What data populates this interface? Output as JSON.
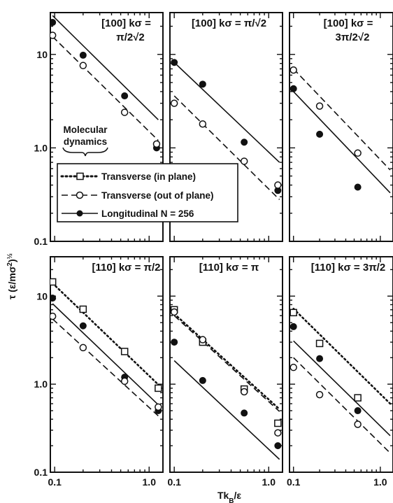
{
  "chart_data": {
    "type": "scatter",
    "x_scale": "log",
    "y_scale": "log",
    "xlim": [
      0.09,
      1.4
    ],
    "ylim": [
      0.1,
      28
    ],
    "x_ticks": [
      "0.1",
      "1.0"
    ],
    "y_ticks": [
      "0.1",
      "1.0",
      "10"
    ],
    "xlabel_parts": [
      "Tk",
      "B",
      "/ε"
    ],
    "ylabel_parts": [
      "τ (ε/mσ",
      "2",
      ")",
      "½"
    ],
    "annotation": [
      "Molecular",
      "dynamics"
    ],
    "legend": {
      "placement": "center-left",
      "entries": [
        {
          "label": "Transverse (in plane)",
          "line": "dotted",
          "marker": "open-square"
        },
        {
          "label": "Transverse (out of plane)",
          "line": "dashed",
          "marker": "open-circle"
        },
        {
          "label": "Longitudinal N = 256",
          "line": "solid",
          "marker": "filled-circle"
        }
      ]
    },
    "panels": [
      {
        "title_lines": [
          "[100]  kσ =",
          "π/2√2"
        ],
        "lines": [
          {
            "style": "solid",
            "points": [
              [
                0.095,
                26
              ],
              [
                1.25,
                2.0
              ]
            ]
          },
          {
            "style": "dashed",
            "points": [
              [
                0.095,
                15.5
              ],
              [
                1.25,
                1.2
              ]
            ]
          }
        ],
        "points": [
          {
            "marker": "filled-circle",
            "x": 0.095,
            "y": 22
          },
          {
            "marker": "filled-circle",
            "x": 0.2,
            "y": 9.8
          },
          {
            "marker": "filled-circle",
            "x": 0.55,
            "y": 3.6
          },
          {
            "marker": "filled-circle",
            "x": 1.2,
            "y": 1.0
          },
          {
            "marker": "open-circle",
            "x": 0.095,
            "y": 16
          },
          {
            "marker": "open-circle",
            "x": 0.2,
            "y": 7.6
          },
          {
            "marker": "open-circle",
            "x": 0.55,
            "y": 2.4
          },
          {
            "marker": "open-circle",
            "x": 1.2,
            "y": 1.1
          }
        ]
      },
      {
        "title_lines": [
          "[100]  kσ = π/√2",
          ""
        ],
        "lines": [
          {
            "style": "solid",
            "points": [
              [
                0.1,
                8.2
              ],
              [
                1.3,
                0.7
              ]
            ]
          },
          {
            "style": "dashed",
            "points": [
              [
                0.1,
                3.6
              ],
              [
                1.3,
                0.28
              ]
            ]
          }
        ],
        "points": [
          {
            "marker": "filled-circle",
            "x": 0.1,
            "y": 8.2
          },
          {
            "marker": "filled-circle",
            "x": 0.2,
            "y": 4.8
          },
          {
            "marker": "filled-circle",
            "x": 0.55,
            "y": 1.15
          },
          {
            "marker": "filled-circle",
            "x": 1.25,
            "y": 0.35
          },
          {
            "marker": "open-circle",
            "x": 0.1,
            "y": 3.0
          },
          {
            "marker": "open-circle",
            "x": 0.2,
            "y": 1.8
          },
          {
            "marker": "open-circle",
            "x": 0.55,
            "y": 0.72
          },
          {
            "marker": "open-circle",
            "x": 1.25,
            "y": 0.4
          }
        ]
      },
      {
        "title_lines": [
          "[100]  kσ =",
          "3π/2√2"
        ],
        "lines": [
          {
            "style": "solid",
            "points": [
              [
                0.1,
                4.0
              ],
              [
                1.3,
                0.33
              ]
            ]
          },
          {
            "style": "dashed",
            "points": [
              [
                0.1,
                7.0
              ],
              [
                1.3,
                0.58
              ]
            ]
          }
        ],
        "points": [
          {
            "marker": "filled-circle",
            "x": 0.1,
            "y": 4.3
          },
          {
            "marker": "filled-circle",
            "x": 0.2,
            "y": 1.4
          },
          {
            "marker": "filled-circle",
            "x": 0.55,
            "y": 0.38
          },
          {
            "marker": "open-circle",
            "x": 0.1,
            "y": 6.8
          },
          {
            "marker": "open-circle",
            "x": 0.2,
            "y": 2.8
          },
          {
            "marker": "open-circle",
            "x": 0.55,
            "y": 0.88
          }
        ]
      },
      {
        "title_lines": [
          "[110]  kσ = π/2",
          ""
        ],
        "lines": [
          {
            "style": "dotted",
            "points": [
              [
                0.095,
                14
              ],
              [
                1.3,
                0.95
              ]
            ]
          },
          {
            "style": "solid",
            "points": [
              [
                0.095,
                8.2
              ],
              [
                1.3,
                0.56
              ]
            ]
          },
          {
            "style": "dashed",
            "points": [
              [
                0.095,
                5.5
              ],
              [
                1.3,
                0.42
              ]
            ]
          }
        ],
        "points": [
          {
            "marker": "open-square",
            "x": 0.095,
            "y": 14.5
          },
          {
            "marker": "open-square",
            "x": 0.2,
            "y": 7.1
          },
          {
            "marker": "open-square",
            "x": 0.55,
            "y": 2.35
          },
          {
            "marker": "open-square",
            "x": 1.25,
            "y": 0.9
          },
          {
            "marker": "filled-circle",
            "x": 0.095,
            "y": 9.5
          },
          {
            "marker": "filled-circle",
            "x": 0.2,
            "y": 4.6
          },
          {
            "marker": "filled-circle",
            "x": 0.55,
            "y": 1.2
          },
          {
            "marker": "filled-circle",
            "x": 1.25,
            "y": 0.5
          },
          {
            "marker": "open-circle",
            "x": 0.095,
            "y": 5.9
          },
          {
            "marker": "open-circle",
            "x": 0.2,
            "y": 2.6
          },
          {
            "marker": "open-circle",
            "x": 0.55,
            "y": 1.08
          },
          {
            "marker": "open-circle",
            "x": 1.25,
            "y": 0.55
          }
        ]
      },
      {
        "title_lines": [
          "[110]  kσ = π",
          ""
        ],
        "lines": [
          {
            "style": "dotted",
            "points": [
              [
                0.1,
                6.3
              ],
              [
                1.3,
                0.52
              ]
            ]
          },
          {
            "style": "dashed",
            "points": [
              [
                0.1,
                6.0
              ],
              [
                1.3,
                0.49
              ]
            ]
          },
          {
            "style": "solid",
            "points": [
              [
                0.1,
                1.85
              ],
              [
                1.3,
                0.14
              ]
            ]
          }
        ],
        "points": [
          {
            "marker": "open-square",
            "x": 0.1,
            "y": 7.0
          },
          {
            "marker": "open-square",
            "x": 0.2,
            "y": 3.0
          },
          {
            "marker": "open-square",
            "x": 0.55,
            "y": 0.88
          },
          {
            "marker": "open-square",
            "x": 1.25,
            "y": 0.36
          },
          {
            "marker": "open-circle",
            "x": 0.1,
            "y": 6.6
          },
          {
            "marker": "open-circle",
            "x": 0.2,
            "y": 3.2
          },
          {
            "marker": "open-circle",
            "x": 0.55,
            "y": 0.82
          },
          {
            "marker": "open-circle",
            "x": 1.25,
            "y": 0.28
          },
          {
            "marker": "filled-circle",
            "x": 0.1,
            "y": 3.0
          },
          {
            "marker": "filled-circle",
            "x": 0.2,
            "y": 1.1
          },
          {
            "marker": "filled-circle",
            "x": 0.55,
            "y": 0.47
          },
          {
            "marker": "filled-circle",
            "x": 1.25,
            "y": 0.2
          }
        ]
      },
      {
        "title_lines": [
          "[110]  kσ = 3π/2",
          ""
        ],
        "lines": [
          {
            "style": "dotted",
            "points": [
              [
                0.1,
                7.2
              ],
              [
                1.3,
                0.6
              ]
            ]
          },
          {
            "style": "solid",
            "points": [
              [
                0.1,
                3.1
              ],
              [
                1.3,
                0.26
              ]
            ]
          },
          {
            "style": "dashed",
            "points": [
              [
                0.1,
                2.0
              ],
              [
                1.3,
                0.165
              ]
            ]
          }
        ],
        "points": [
          {
            "marker": "open-square",
            "x": 0.1,
            "y": 6.5
          },
          {
            "marker": "open-square",
            "x": 0.2,
            "y": 2.9
          },
          {
            "marker": "open-square",
            "x": 0.55,
            "y": 0.7
          },
          {
            "marker": "filled-circle",
            "x": 0.1,
            "y": 4.5
          },
          {
            "marker": "filled-circle",
            "x": 0.2,
            "y": 1.95
          },
          {
            "marker": "filled-circle",
            "x": 0.55,
            "y": 0.5
          },
          {
            "marker": "open-circle",
            "x": 0.1,
            "y": 1.55
          },
          {
            "marker": "open-circle",
            "x": 0.2,
            "y": 0.76
          },
          {
            "marker": "open-circle",
            "x": 0.55,
            "y": 0.35
          }
        ]
      }
    ]
  }
}
